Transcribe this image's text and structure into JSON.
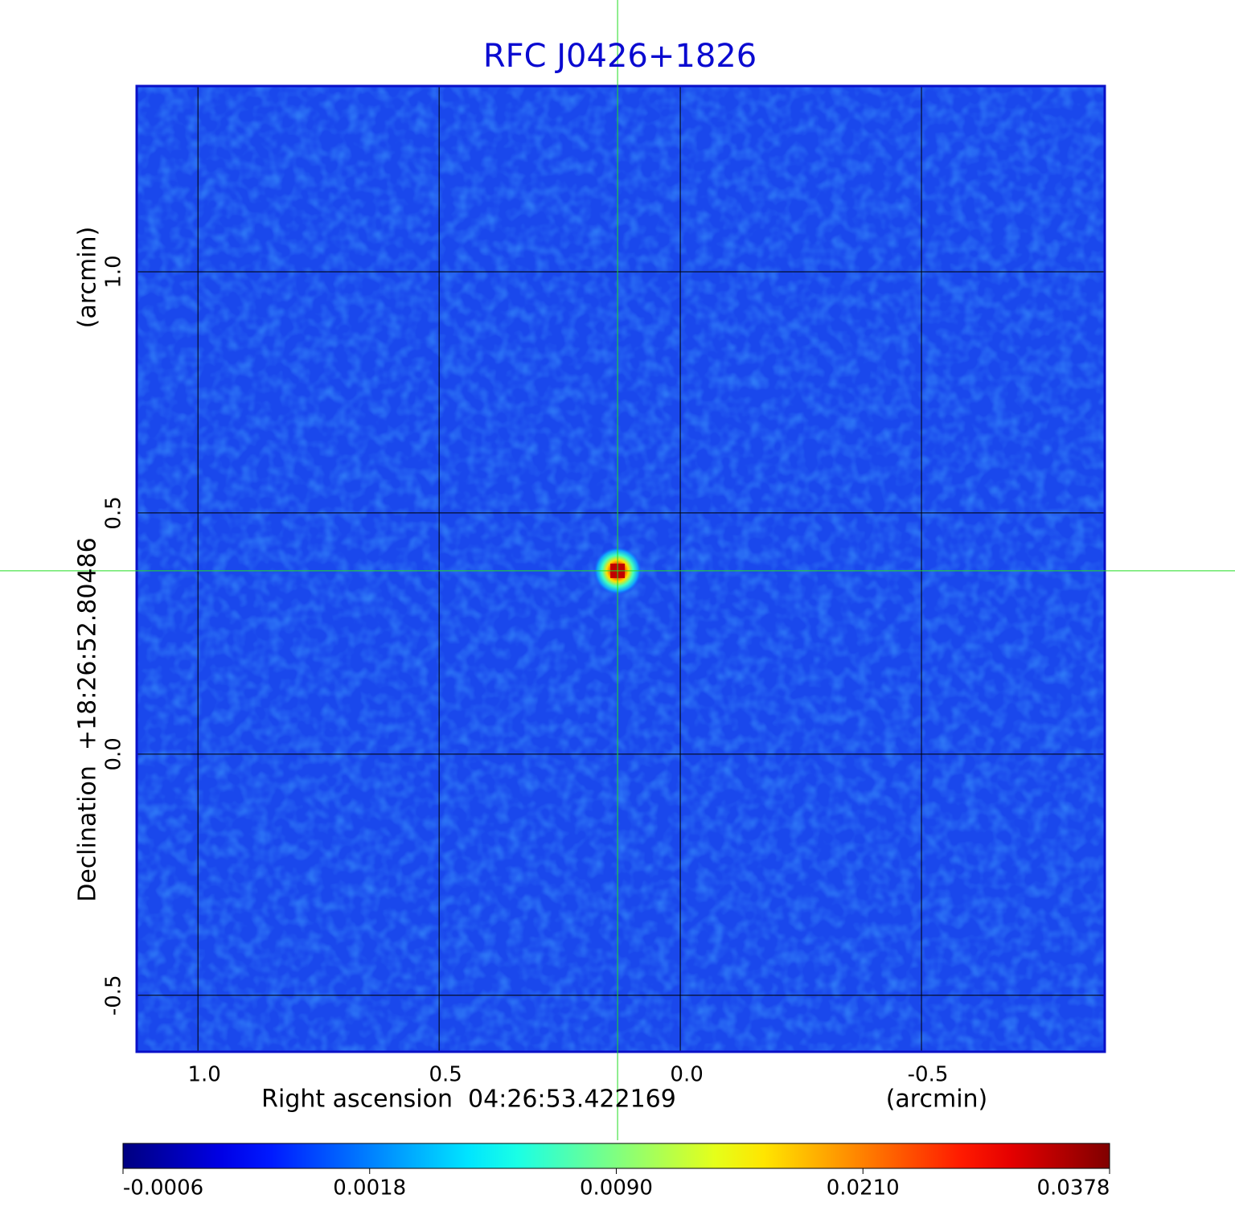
{
  "chart_data": {
    "type": "image",
    "title": "RFC J0426+1826",
    "x_label": "Right ascension  04:26:53.422169",
    "x_unit": "(arcmin)",
    "y_label": "Declination  +18:26:52.80486",
    "y_unit": "(arcmin)",
    "xlim": [
      1.127,
      -0.88
    ],
    "ylim": [
      -0.617,
      1.385
    ],
    "xticks": [
      {
        "value": 1,
        "label": "1.0"
      },
      0.5,
      {
        "value": 0,
        "label": "0.0"
      },
      -0.5
    ],
    "yticks": [
      {
        "value": 1,
        "label": "1.0"
      },
      0.5,
      {
        "value": 0,
        "label": "0.0"
      },
      -0.5
    ],
    "grid": true,
    "peak": {
      "x": 0.13,
      "y": 0.38
    },
    "colormap": "jet",
    "colorbar": {
      "clim": [
        -0.0006,
        0.0378
      ],
      "scale": "sqrt",
      "ticks": [
        -0.0006,
        0.0018,
        {
          "value": 0.009,
          "label": "0.0090"
        },
        {
          "value": 0.021,
          "label": "0.0210"
        },
        0.0378
      ]
    }
  }
}
